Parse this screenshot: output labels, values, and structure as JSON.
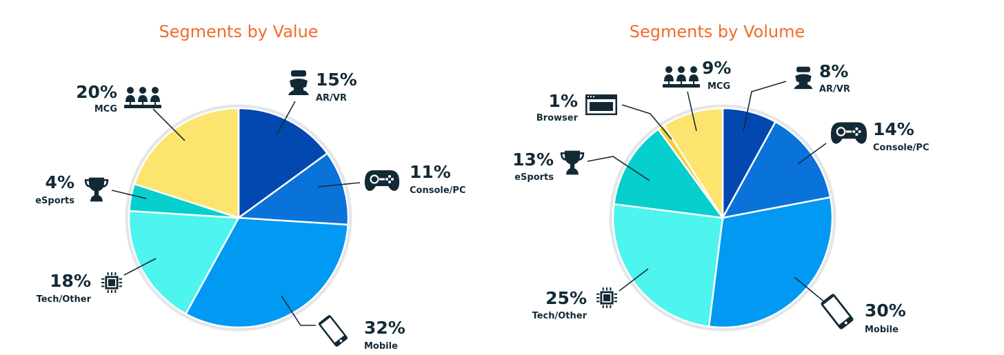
{
  "colors": {
    "title": "#f26a2a",
    "text": "#132a36",
    "icon": "#132a36",
    "AR/VR": "#0347b0",
    "Console/PC": "#0a73d9",
    "Mobile": "#0299f2",
    "Tech/Other": "#4ef4ee",
    "eSports": "#06cfce",
    "Browser": "#f6cf3a",
    "MCG": "#fde46e"
  },
  "chart_data": [
    {
      "type": "pie",
      "title": "Segments by Value",
      "slices": [
        {
          "label": "AR/VR",
          "value": 15,
          "pct_label": "15%",
          "icon": "vr-headset-icon"
        },
        {
          "label": "Console/PC",
          "value": 11,
          "pct_label": "11%",
          "icon": "gamepad-icon"
        },
        {
          "label": "Mobile",
          "value": 32,
          "pct_label": "32%",
          "icon": "smartphone-icon"
        },
        {
          "label": "Tech/Other",
          "value": 18,
          "pct_label": "18%",
          "icon": "chip-icon"
        },
        {
          "label": "eSports",
          "value": 4,
          "pct_label": "4%",
          "icon": "trophy-icon"
        },
        {
          "label": "MCG",
          "value": 20,
          "pct_label": "20%",
          "icon": "people-icon"
        }
      ]
    },
    {
      "type": "pie",
      "title": "Segments by Volume",
      "slices": [
        {
          "label": "AR/VR",
          "value": 8,
          "pct_label": "8%",
          "icon": "vr-headset-icon"
        },
        {
          "label": "Console/PC",
          "value": 14,
          "pct_label": "14%",
          "icon": "gamepad-icon"
        },
        {
          "label": "Mobile",
          "value": 30,
          "pct_label": "30%",
          "icon": "smartphone-icon"
        },
        {
          "label": "Tech/Other",
          "value": 25,
          "pct_label": "25%",
          "icon": "chip-icon"
        },
        {
          "label": "eSports",
          "value": 13,
          "pct_label": "13%",
          "icon": "trophy-icon"
        },
        {
          "label": "Browser",
          "value": 1,
          "pct_label": "1%",
          "icon": "browser-window-icon"
        },
        {
          "label": "MCG",
          "value": 9,
          "pct_label": "9%",
          "icon": "people-icon"
        }
      ]
    }
  ]
}
